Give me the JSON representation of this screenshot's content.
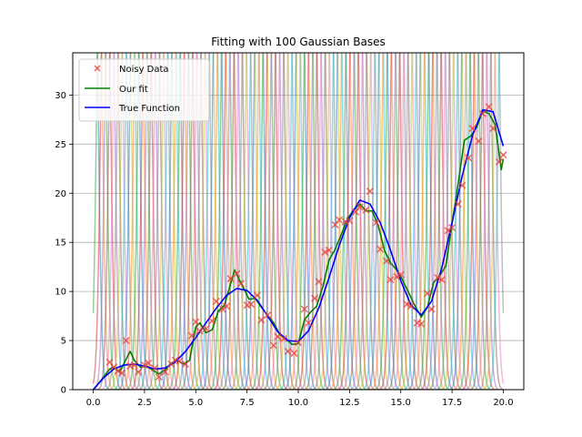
{
  "chart_data": {
    "type": "line",
    "title": "Fitting with 100 Gaussian Bases",
    "xlabel": "",
    "ylabel": "",
    "xlim": [
      -1.0,
      21.0
    ],
    "ylim": [
      0,
      34.3
    ],
    "x_ticks": [
      0.0,
      2.5,
      5.0,
      7.5,
      10.0,
      12.5,
      15.0,
      17.5,
      20.0
    ],
    "x_tick_labels": [
      "0.0",
      "2.5",
      "5.0",
      "7.5",
      "10.0",
      "12.5",
      "15.0",
      "17.5",
      "20.0"
    ],
    "y_ticks": [
      0,
      5,
      10,
      15,
      20,
      25,
      30
    ],
    "y_tick_labels": [
      "0",
      "5",
      "10",
      "15",
      "20",
      "25",
      "30"
    ],
    "grid": "horizontal",
    "legend_placement": "top-left",
    "colors": {
      "noisy": "#e8413b",
      "fit": "#008000",
      "true": "#0000ff",
      "bases": [
        "#1f77b4",
        "#ff7f0e",
        "#2ca02c",
        "#d62728",
        "#9467bd",
        "#8c564b",
        "#e377c2",
        "#7f7f7f",
        "#bcbd22",
        "#17becf"
      ]
    },
    "basis": {
      "count": 100,
      "centers_range": [
        0,
        20
      ],
      "width": 0.2
    },
    "series": [
      {
        "name": "Noisy Data",
        "kind": "scatter",
        "marker": "x",
        "x": [
          0.8,
          1.0,
          1.2,
          1.4,
          1.6,
          1.8,
          2.0,
          2.2,
          2.5,
          2.7,
          3.0,
          3.2,
          3.5,
          3.8,
          4.0,
          4.2,
          4.5,
          4.8,
          5.0,
          5.2,
          5.5,
          5.8,
          6.0,
          6.3,
          6.5,
          6.7,
          7.0,
          7.2,
          7.5,
          7.7,
          8.0,
          8.2,
          8.5,
          8.8,
          9.0,
          9.3,
          9.5,
          9.8,
          10.0,
          10.3,
          10.5,
          10.8,
          11.0,
          11.3,
          11.5,
          11.8,
          12.0,
          12.3,
          12.5,
          12.8,
          13.0,
          13.3,
          13.5,
          13.8,
          14.0,
          14.3,
          14.5,
          14.8,
          15.0,
          15.3,
          15.5,
          15.8,
          16.0,
          16.3,
          16.5,
          16.8,
          17.0,
          17.3,
          17.5,
          17.8,
          18.0,
          18.3,
          18.5,
          18.8,
          19.0,
          19.3,
          19.5,
          19.8,
          20.0
        ],
        "y": [
          2.8,
          2.3,
          1.9,
          1.7,
          5.0,
          2.4,
          2.5,
          1.8,
          2.5,
          2.7,
          2.2,
          1.3,
          1.8,
          2.6,
          3.0,
          2.9,
          2.6,
          5.5,
          6.9,
          6.0,
          6.2,
          7.0,
          9.0,
          8.2,
          8.5,
          11.3,
          11.8,
          10.8,
          8.6,
          8.7,
          9.6,
          7.1,
          7.6,
          4.5,
          5.4,
          5.2,
          3.9,
          3.7,
          4.8,
          8.2,
          6.8,
          9.3,
          11.0,
          14.0,
          14.2,
          16.8,
          17.3,
          17.1,
          17.2,
          18.1,
          18.6,
          18.3,
          20.2,
          17.0,
          14.3,
          13.1,
          11.2,
          11.5,
          11.7,
          8.7,
          8.5,
          6.8,
          6.7,
          9.8,
          8.2,
          11.4,
          11.2,
          16.2,
          16.5,
          18.9,
          20.8,
          23.6,
          26.6,
          25.3,
          28.1,
          28.8,
          26.6,
          23.2,
          23.9
        ]
      },
      {
        "name": "Our fit",
        "kind": "line",
        "x": [
          0.0,
          0.4,
          0.8,
          1.0,
          1.3,
          1.6,
          1.8,
          2.0,
          2.3,
          2.6,
          2.9,
          3.2,
          3.5,
          3.8,
          4.1,
          4.4,
          4.7,
          5.0,
          5.2,
          5.5,
          5.8,
          6.1,
          6.4,
          6.7,
          6.9,
          7.1,
          7.3,
          7.6,
          7.9,
          8.2,
          8.5,
          8.8,
          9.1,
          9.4,
          9.7,
          10.0,
          10.3,
          10.6,
          10.9,
          11.2,
          11.5,
          11.8,
          12.1,
          12.4,
          12.7,
          13.0,
          13.3,
          13.6,
          13.9,
          14.2,
          14.5,
          14.8,
          15.1,
          15.4,
          15.7,
          16.0,
          16.3,
          16.6,
          16.9,
          17.2,
          17.5,
          17.8,
          18.1,
          18.4,
          18.7,
          19.0,
          19.3,
          19.6,
          19.9,
          20.0
        ],
        "y": [
          0.0,
          1.0,
          2.1,
          2.3,
          1.8,
          3.1,
          3.9,
          3.0,
          2.3,
          2.4,
          2.0,
          1.6,
          2.0,
          2.7,
          3.0,
          2.6,
          3.0,
          6.4,
          6.8,
          5.8,
          6.1,
          8.0,
          8.6,
          10.8,
          12.2,
          11.3,
          10.5,
          9.2,
          9.3,
          8.4,
          7.6,
          6.8,
          5.6,
          5.2,
          4.6,
          4.7,
          7.1,
          7.9,
          8.5,
          10.5,
          13.2,
          14.3,
          15.8,
          17.4,
          18.3,
          18.9,
          18.2,
          18.2,
          16.7,
          14.2,
          12.9,
          12.2,
          11.1,
          9.8,
          8.5,
          7.4,
          8.4,
          10.9,
          11.6,
          12.6,
          16.9,
          21.0,
          25.4,
          25.8,
          26.7,
          28.4,
          28.1,
          27.0,
          22.4,
          23.5
        ]
      },
      {
        "name": "True Function",
        "kind": "line",
        "x": [
          0.0,
          0.5,
          1.0,
          1.5,
          2.0,
          2.5,
          3.0,
          3.5,
          4.0,
          4.5,
          5.0,
          5.5,
          6.0,
          6.5,
          7.0,
          7.5,
          8.0,
          8.5,
          9.0,
          9.5,
          10.0,
          10.5,
          11.0,
          11.5,
          12.0,
          12.5,
          13.0,
          13.5,
          14.0,
          14.5,
          15.0,
          15.5,
          16.0,
          16.5,
          17.0,
          17.5,
          18.0,
          18.5,
          19.0,
          19.5,
          20.0
        ],
        "y": [
          0.0,
          1.2,
          2.1,
          2.5,
          2.6,
          2.4,
          2.1,
          2.2,
          2.8,
          3.9,
          5.3,
          6.8,
          8.3,
          9.6,
          10.3,
          10.1,
          9.1,
          7.5,
          5.9,
          5.0,
          4.9,
          6.0,
          8.3,
          11.4,
          14.7,
          17.5,
          19.3,
          18.9,
          17.0,
          14.2,
          11.1,
          8.6,
          7.6,
          9.0,
          12.4,
          17.0,
          21.8,
          25.9,
          28.5,
          28.3,
          24.8
        ]
      }
    ]
  }
}
